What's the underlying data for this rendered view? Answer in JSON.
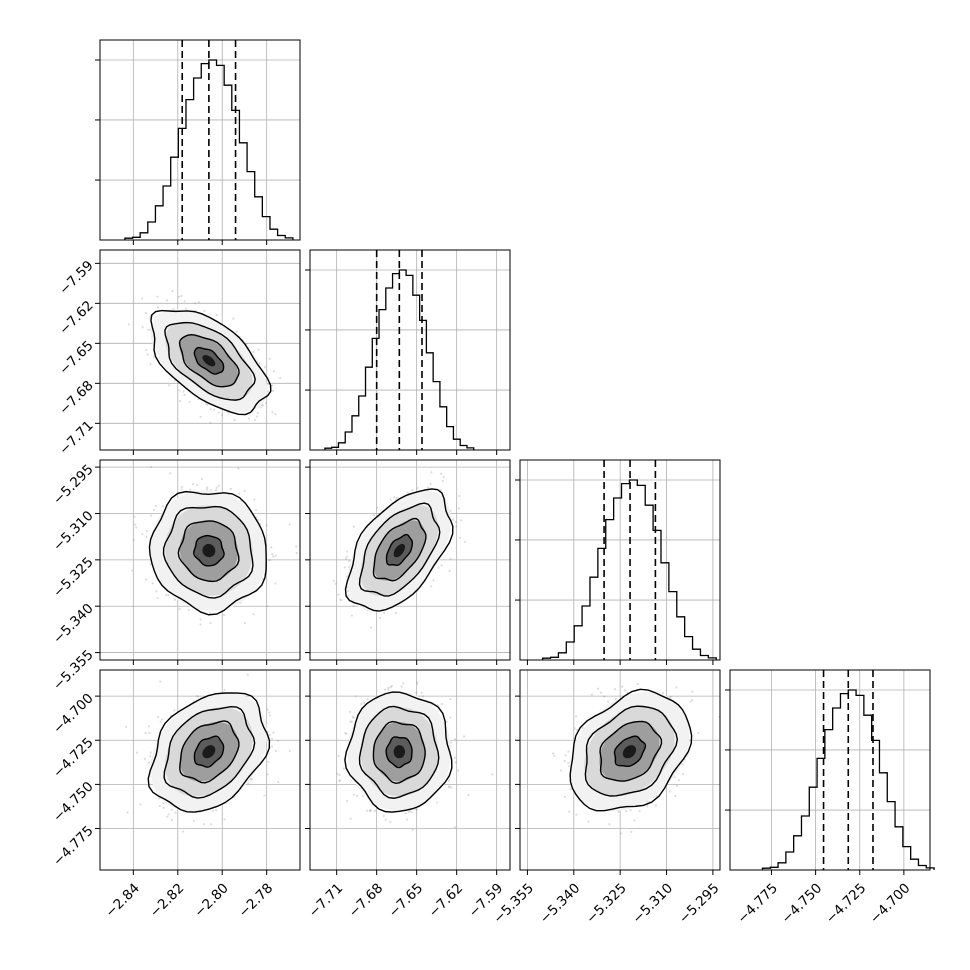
{
  "chart_data": {
    "type": "corner",
    "grid": true,
    "parameters": [
      {
        "range": [
          -2.855,
          -2.765
        ],
        "ticks": [
          -2.84,
          -2.82,
          -2.8,
          -2.78
        ],
        "tick_labels": [
          "−2.84",
          "−2.82",
          "−2.80",
          "−2.78"
        ],
        "quantiles": [
          -2.818,
          -2.806,
          -2.794
        ],
        "mean": -2.806,
        "sd": 0.0105
      },
      {
        "range": [
          -7.73,
          -7.58
        ],
        "ticks": [
          -7.71,
          -7.68,
          -7.65,
          -7.62,
          -7.59
        ],
        "tick_labels": [
          "−7.71",
          "−7.68",
          "−7.65",
          "−7.62",
          "−7.59"
        ],
        "quantiles": [
          -7.68,
          -7.663,
          -7.646
        ],
        "mean": -7.663,
        "sd": 0.0155
      },
      {
        "range": [
          -5.3574,
          -5.2927
        ],
        "ticks": [
          -5.355,
          -5.34,
          -5.325,
          -5.31,
          -5.295
        ],
        "tick_labels": [
          "−5.355",
          "−5.340",
          "−5.325",
          "−5.310",
          "−5.295"
        ],
        "quantiles": [
          -5.3302,
          -5.3218,
          -5.3136
        ],
        "mean": -5.322,
        "sd": 0.0078
      },
      {
        "range": [
          -4.7985,
          -4.6852
        ],
        "ticks": [
          -4.775,
          -4.75,
          -4.725,
          -4.7
        ],
        "tick_labels": [
          "−4.775",
          "−4.750",
          "−4.725",
          "−4.700"
        ],
        "quantiles": [
          -4.7455,
          -4.7315,
          -4.7175
        ],
        "mean": -4.7315,
        "sd": 0.0135
      }
    ],
    "correlations": {
      "1-0": -0.55,
      "2-0": -0.05,
      "2-1": 0.5,
      "3-0": 0.3,
      "3-1": 0.0,
      "3-2": 0.3
    },
    "hist_weights": [
      0.01,
      0.015,
      0.04,
      0.1,
      0.19,
      0.3,
      0.46,
      0.62,
      0.78,
      0.9,
      0.98,
      1.0,
      0.97,
      0.86,
      0.72,
      0.54,
      0.38,
      0.24,
      0.13,
      0.06,
      0.025,
      0.012
    ]
  }
}
